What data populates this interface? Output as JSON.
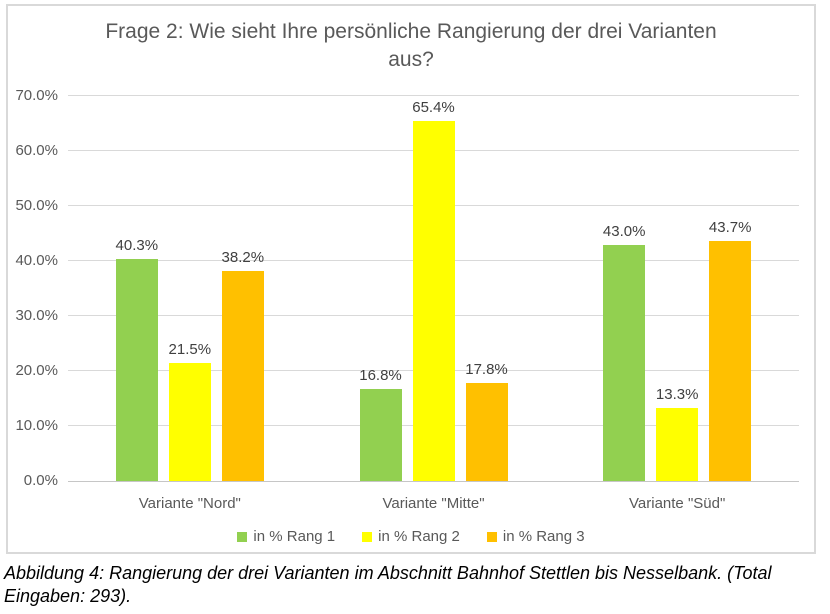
{
  "chart_data": {
    "type": "bar",
    "title": "Frage 2: Wie sieht Ihre persönliche Rangierung der drei Varianten aus?",
    "xlabel": "",
    "ylabel": "",
    "categories": [
      "Variante \"Nord\"",
      "Variante \"Mitte\"",
      "Variante \"Süd\""
    ],
    "series": [
      {
        "name": "in % Rang 1",
        "color": "#92D050",
        "values": [
          40.3,
          16.8,
          43.0
        ],
        "labels": [
          "40.3%",
          "16.8%",
          "43.0%"
        ]
      },
      {
        "name": "in % Rang 2",
        "color": "#FFFF00",
        "values": [
          21.5,
          65.4,
          13.3
        ],
        "labels": [
          "21.5%",
          "65.4%",
          "13.3%"
        ]
      },
      {
        "name": "in % Rang 3",
        "color": "#FFC000",
        "values": [
          38.2,
          17.8,
          43.7
        ],
        "labels": [
          "38.2%",
          "17.8%",
          "43.7%"
        ]
      }
    ],
    "ylim": [
      0,
      70
    ],
    "yticks": [
      {
        "value": 0,
        "label": "0.0%"
      },
      {
        "value": 10,
        "label": "10.0%"
      },
      {
        "value": 20,
        "label": "20.0%"
      },
      {
        "value": 30,
        "label": "30.0%"
      },
      {
        "value": 40,
        "label": "40.0%"
      },
      {
        "value": 50,
        "label": "50.0%"
      },
      {
        "value": 60,
        "label": "60.0%"
      },
      {
        "value": 70,
        "label": "70.0%"
      }
    ],
    "grid": true,
    "legend_position": "bottom"
  },
  "caption": "Abbildung 4: Rangierung der drei Varianten im Abschnitt Bahnhof Stettlen bis Nesselbank. (Total Eingaben: 293)."
}
